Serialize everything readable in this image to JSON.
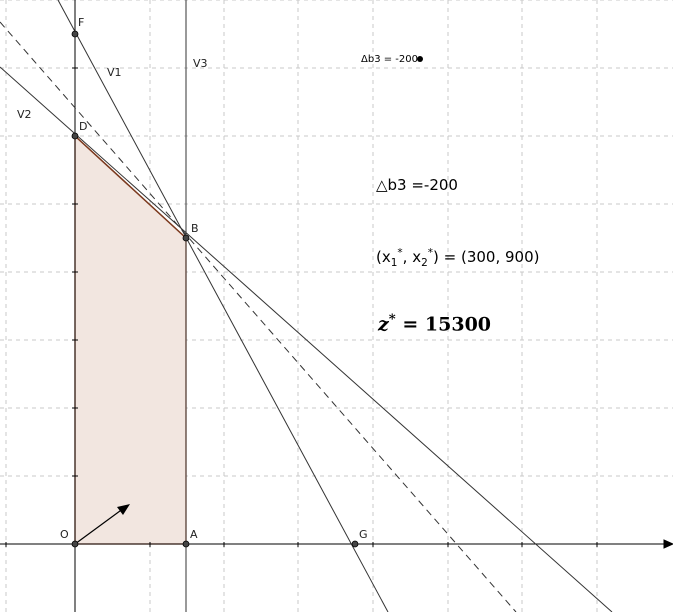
{
  "points": [
    {
      "id": "O",
      "label": "O"
    },
    {
      "id": "A",
      "label": "A"
    },
    {
      "id": "B",
      "label": "B"
    },
    {
      "id": "D",
      "label": "D"
    },
    {
      "id": "F",
      "label": "F"
    },
    {
      "id": "G",
      "label": "G"
    }
  ],
  "lines": {
    "v1": "V1",
    "v2": "V2",
    "v3": "V3"
  },
  "slider": {
    "label": "Δb3 = -200"
  },
  "info": {
    "delta_text": "△b3 =-200",
    "solution_prefix": "(x",
    "sub1": "1",
    "sup1": "*",
    "solution_mid": ", x",
    "sub2": "2",
    "sup2": "*",
    "solution_suffix": ") = (300, 900)",
    "z_var": "z",
    "z_sup": "*",
    "z_rest": " = 15300"
  },
  "colors": {
    "feasible_fill": "#f2e6e0",
    "feasible_stroke": "#c8643c",
    "grid": "#c8c8c8",
    "axis": "#000000"
  }
}
